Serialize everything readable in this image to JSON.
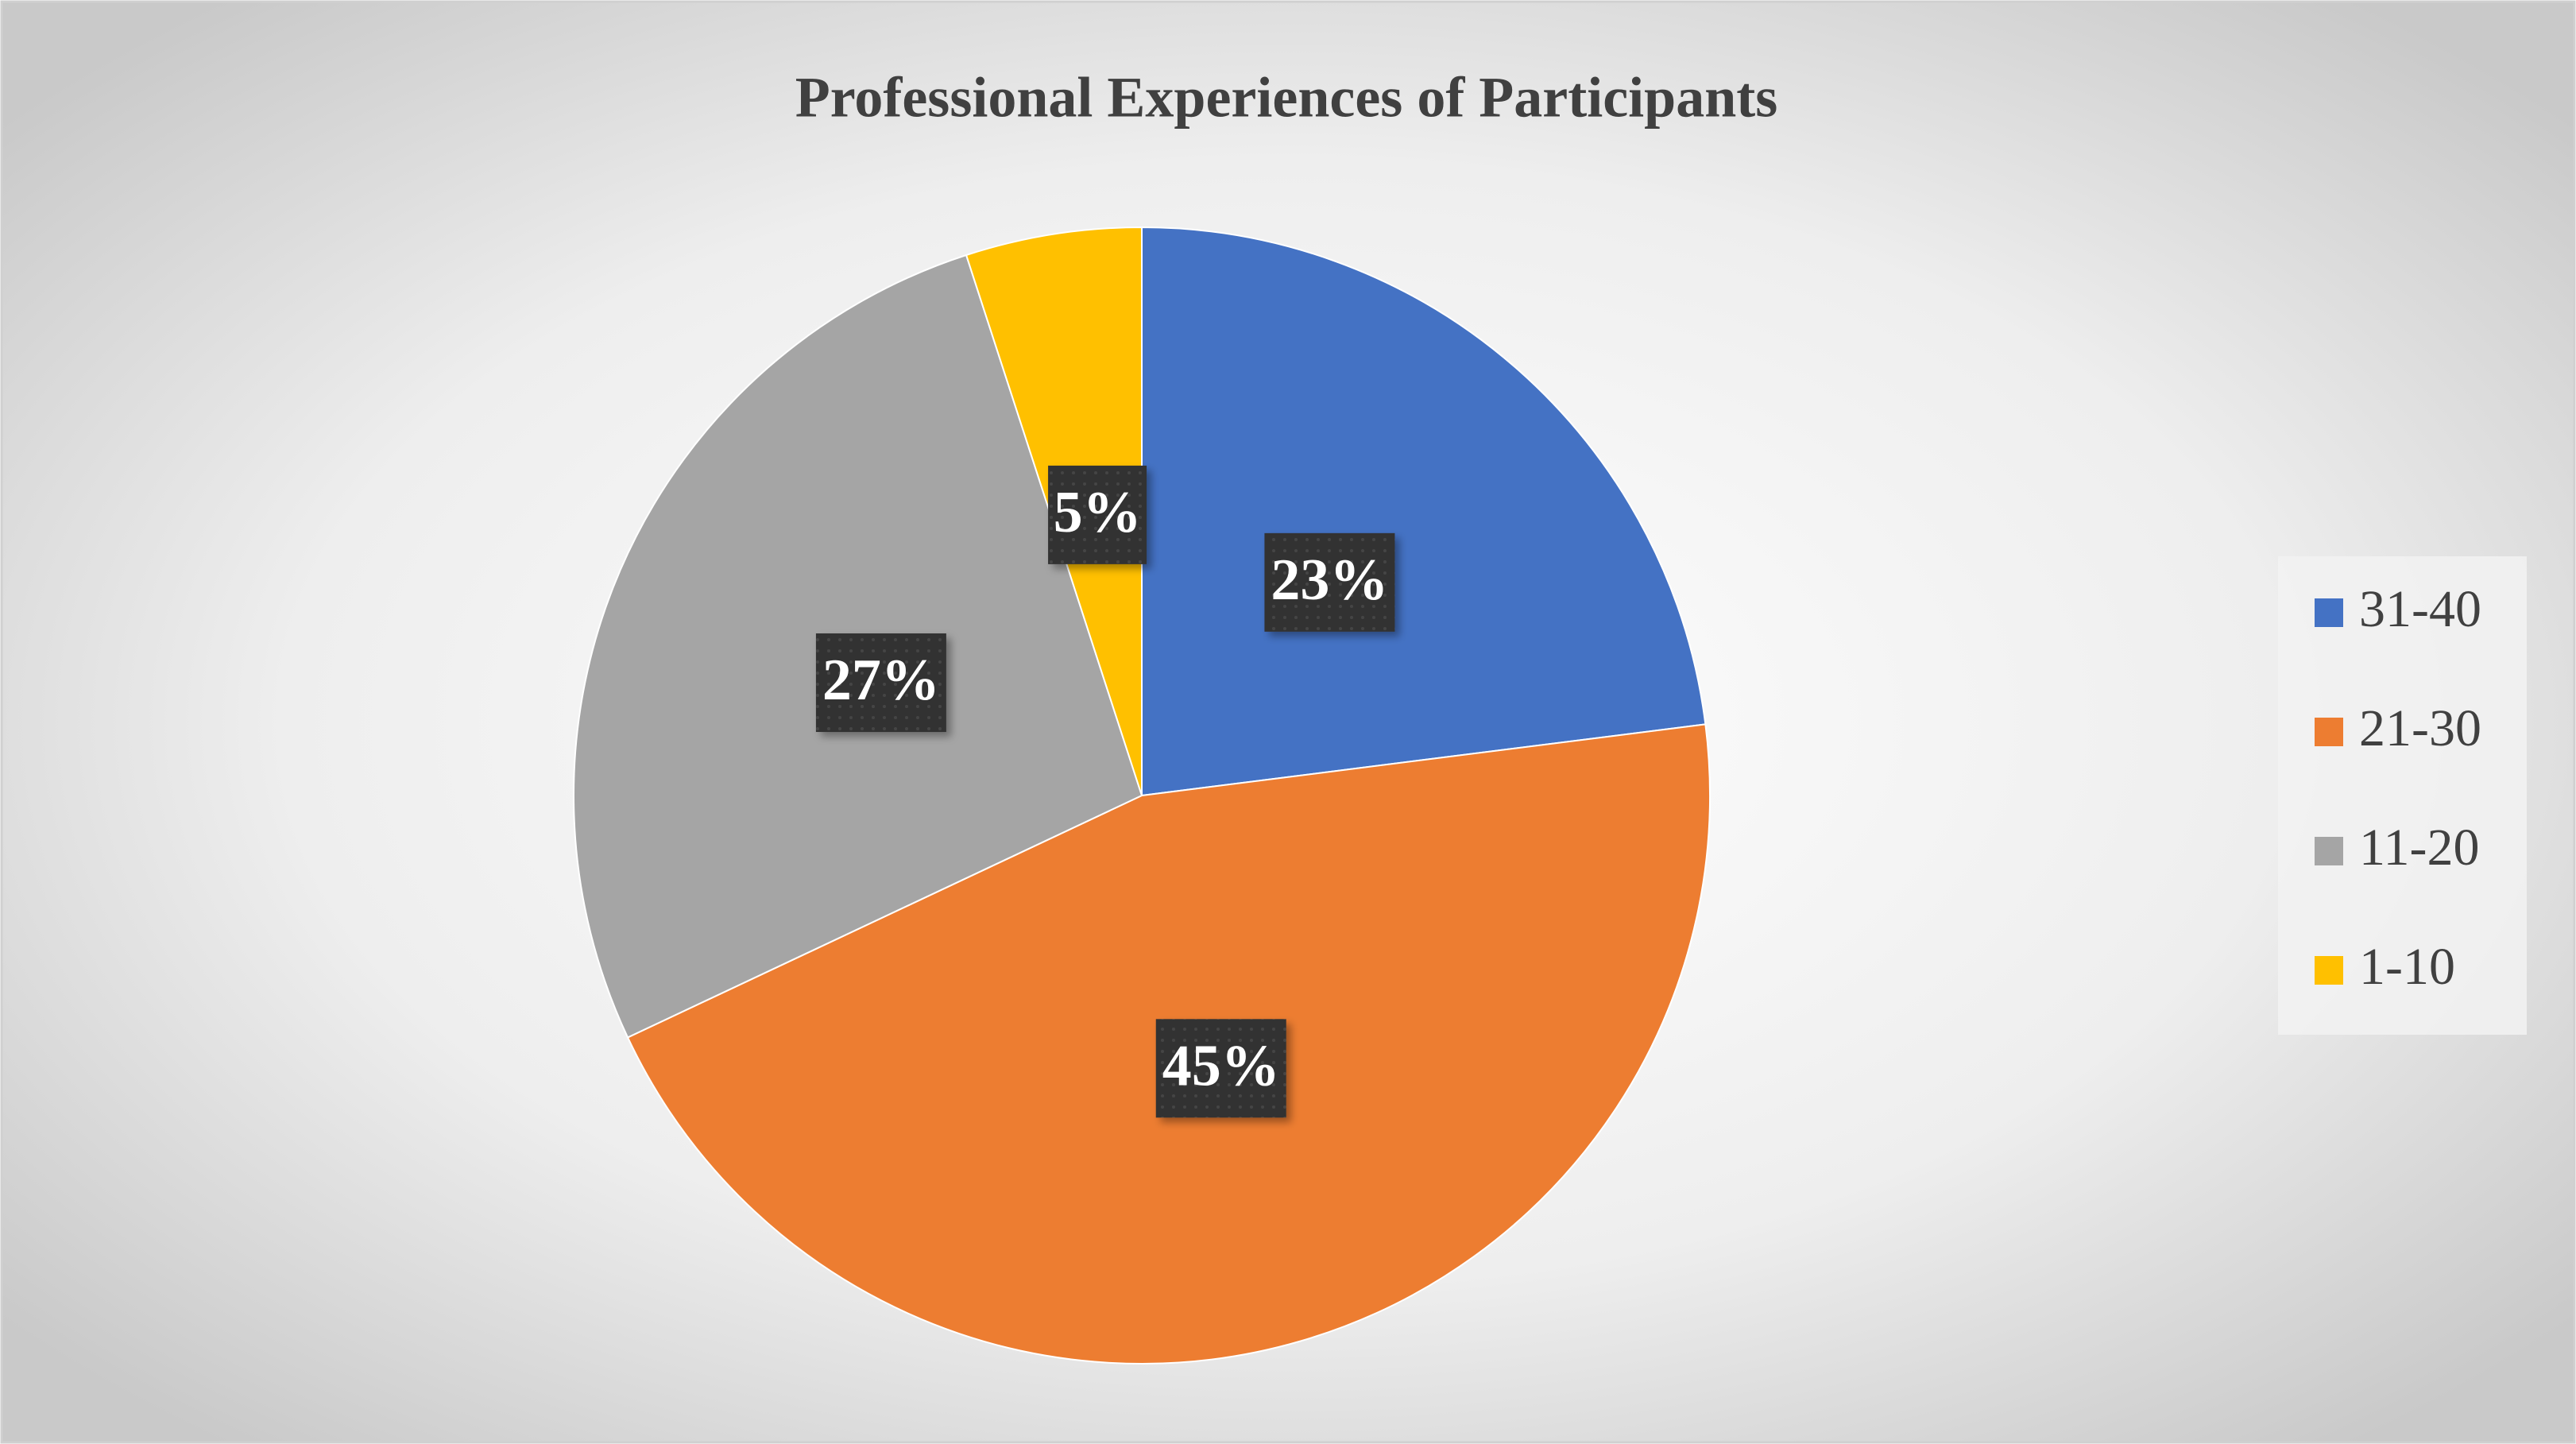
{
  "chart_data": {
    "type": "pie",
    "title": "Professional Experiences of Participants",
    "categories": [
      "31-40",
      "21-30",
      "11-20",
      "1-10"
    ],
    "values": [
      23,
      45,
      27,
      5
    ],
    "value_labels": [
      "23%",
      "45%",
      "27%",
      "5%"
    ],
    "colors": [
      "#4472c4",
      "#ed7d31",
      "#a5a5a5",
      "#ffc000"
    ],
    "legend": "right"
  }
}
